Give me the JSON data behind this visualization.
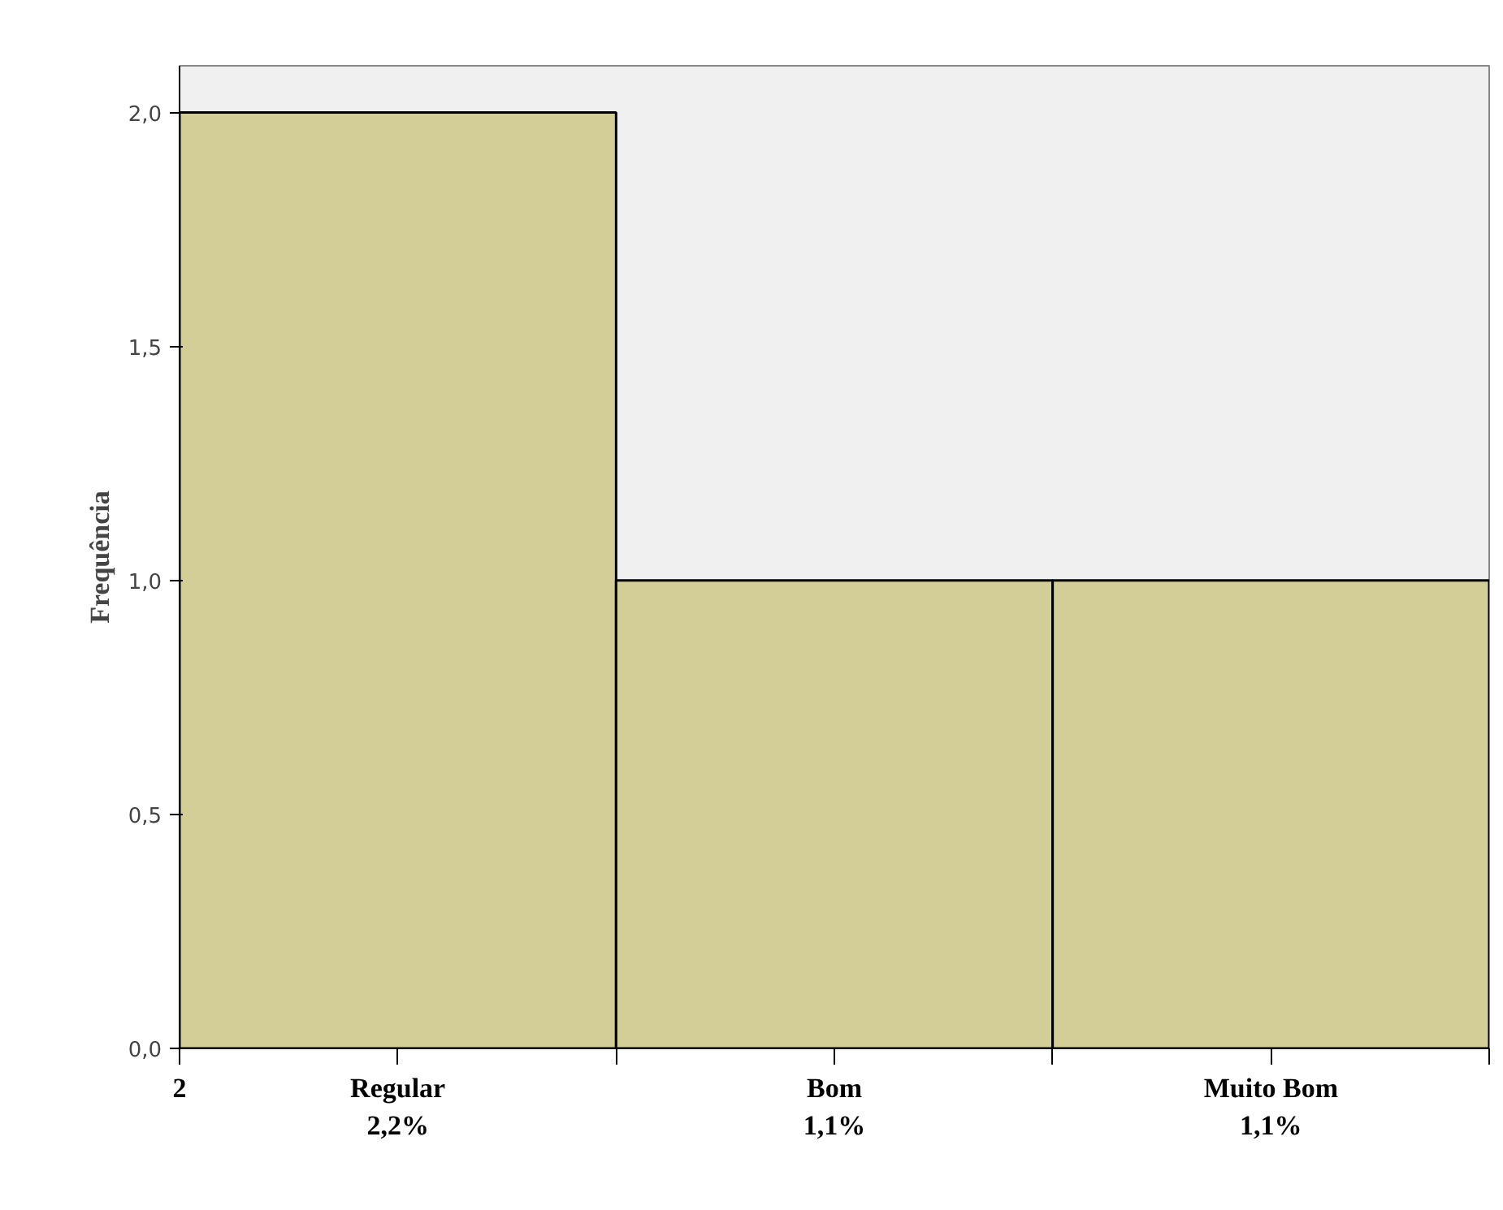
{
  "chart_data": {
    "type": "bar",
    "categories": [
      "Regular\n2,2%",
      "Bom\n1,1%",
      "Muito Bom\n1,1%"
    ],
    "values": [
      2,
      1,
      1
    ],
    "color": "#d3ce97",
    "ylabel": "Frequência",
    "ylim": [
      0,
      2.1
    ],
    "yticks": [
      {
        "value": 0,
        "label": "0,0"
      },
      {
        "value": 0.5,
        "label": "0,5"
      },
      {
        "value": 1,
        "label": "1,0"
      },
      {
        "value": 1.5,
        "label": "1,5"
      },
      {
        "value": 2,
        "label": "2,0"
      }
    ],
    "annotations": [
      "2"
    ],
    "grid": false
  }
}
